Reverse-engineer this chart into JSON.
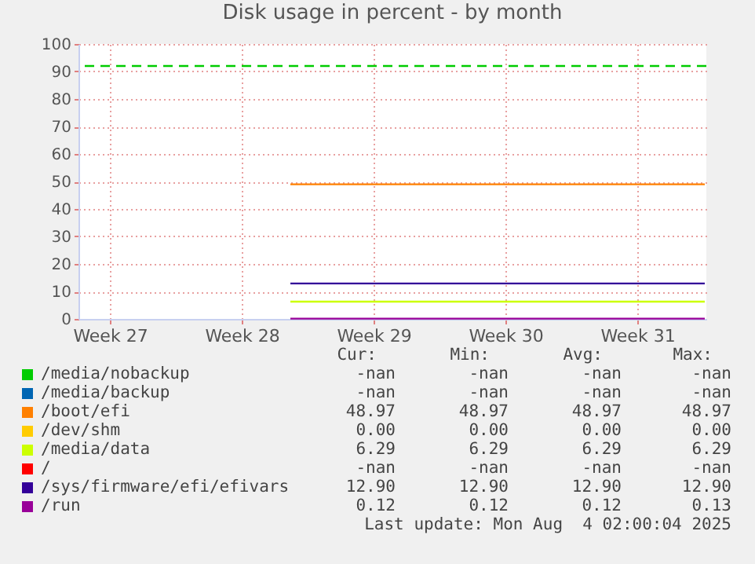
{
  "chart_data": {
    "type": "line",
    "title": "Disk usage in percent - by month",
    "x": [
      "2025-07-13T02:00",
      "2025-08-04T02:00"
    ],
    "series": [
      {
        "name": "/media/nobackup",
        "color": "#00cc00",
        "values": [
          null,
          null
        ]
      },
      {
        "name": "/media/backup",
        "color": "#0066b3",
        "values": [
          null,
          null
        ]
      },
      {
        "name": "/boot/efi",
        "color": "#ff8000",
        "values": [
          48.97,
          48.97
        ]
      },
      {
        "name": "/dev/shm",
        "color": "#ffcc00",
        "values": [
          null,
          null
        ]
      },
      {
        "name": "/media/data",
        "color": "#ccff00",
        "values": [
          6.29,
          6.29
        ]
      },
      {
        "name": "/",
        "color": "#ff0000",
        "values": [
          null,
          null
        ]
      },
      {
        "name": "/sys/firmware/efi/efivars",
        "color": "#330099",
        "values": [
          12.9,
          12.9
        ]
      },
      {
        "name": "/run",
        "color": "#990099",
        "values": [
          0.12,
          0.12
        ]
      }
    ],
    "xlim": [
      "2025-07-01T20:00",
      "2025-08-04T04:00"
    ],
    "xticks": [
      {
        "value": "2025-07-03T12:00",
        "label": "Week 27"
      },
      {
        "value": "2025-07-10T12:00",
        "label": "Week 28"
      },
      {
        "value": "2025-07-17T12:00",
        "label": "Week 29"
      },
      {
        "value": "2025-07-24T12:00",
        "label": "Week 30"
      },
      {
        "value": "2025-07-31T12:00",
        "label": "Week 31"
      }
    ],
    "ylim": [
      0,
      100
    ],
    "yticks": [
      0,
      10,
      20,
      30,
      40,
      50,
      60,
      70,
      80,
      90,
      100
    ],
    "grid": true,
    "legend": "bottom",
    "line_style": "solid",
    "marker": "none",
    "ref_lines": [
      {
        "axis": "y",
        "value": 92,
        "color": "#00cc00",
        "line_style": "dashed"
      }
    ],
    "annotations": [
      "Cur:",
      "Min:",
      "Avg:",
      "Max:",
      "-nan",
      "-nan",
      "-nan",
      "-nan",
      "-nan",
      "-nan",
      "-nan",
      "-nan",
      "48.97",
      "48.97",
      "48.97",
      "48.97",
      "0.00",
      "0.00",
      "0.00",
      "0.00",
      "6.29",
      "6.29",
      "6.29",
      "6.29",
      "-nan",
      "-nan",
      "-nan",
      "-nan",
      "12.90",
      "12.90",
      "12.90",
      "12.90",
      "0.12",
      "0.12",
      "0.12",
      "0.13",
      "Last update: Mon Aug  4 02:00:04 2025"
    ]
  }
}
